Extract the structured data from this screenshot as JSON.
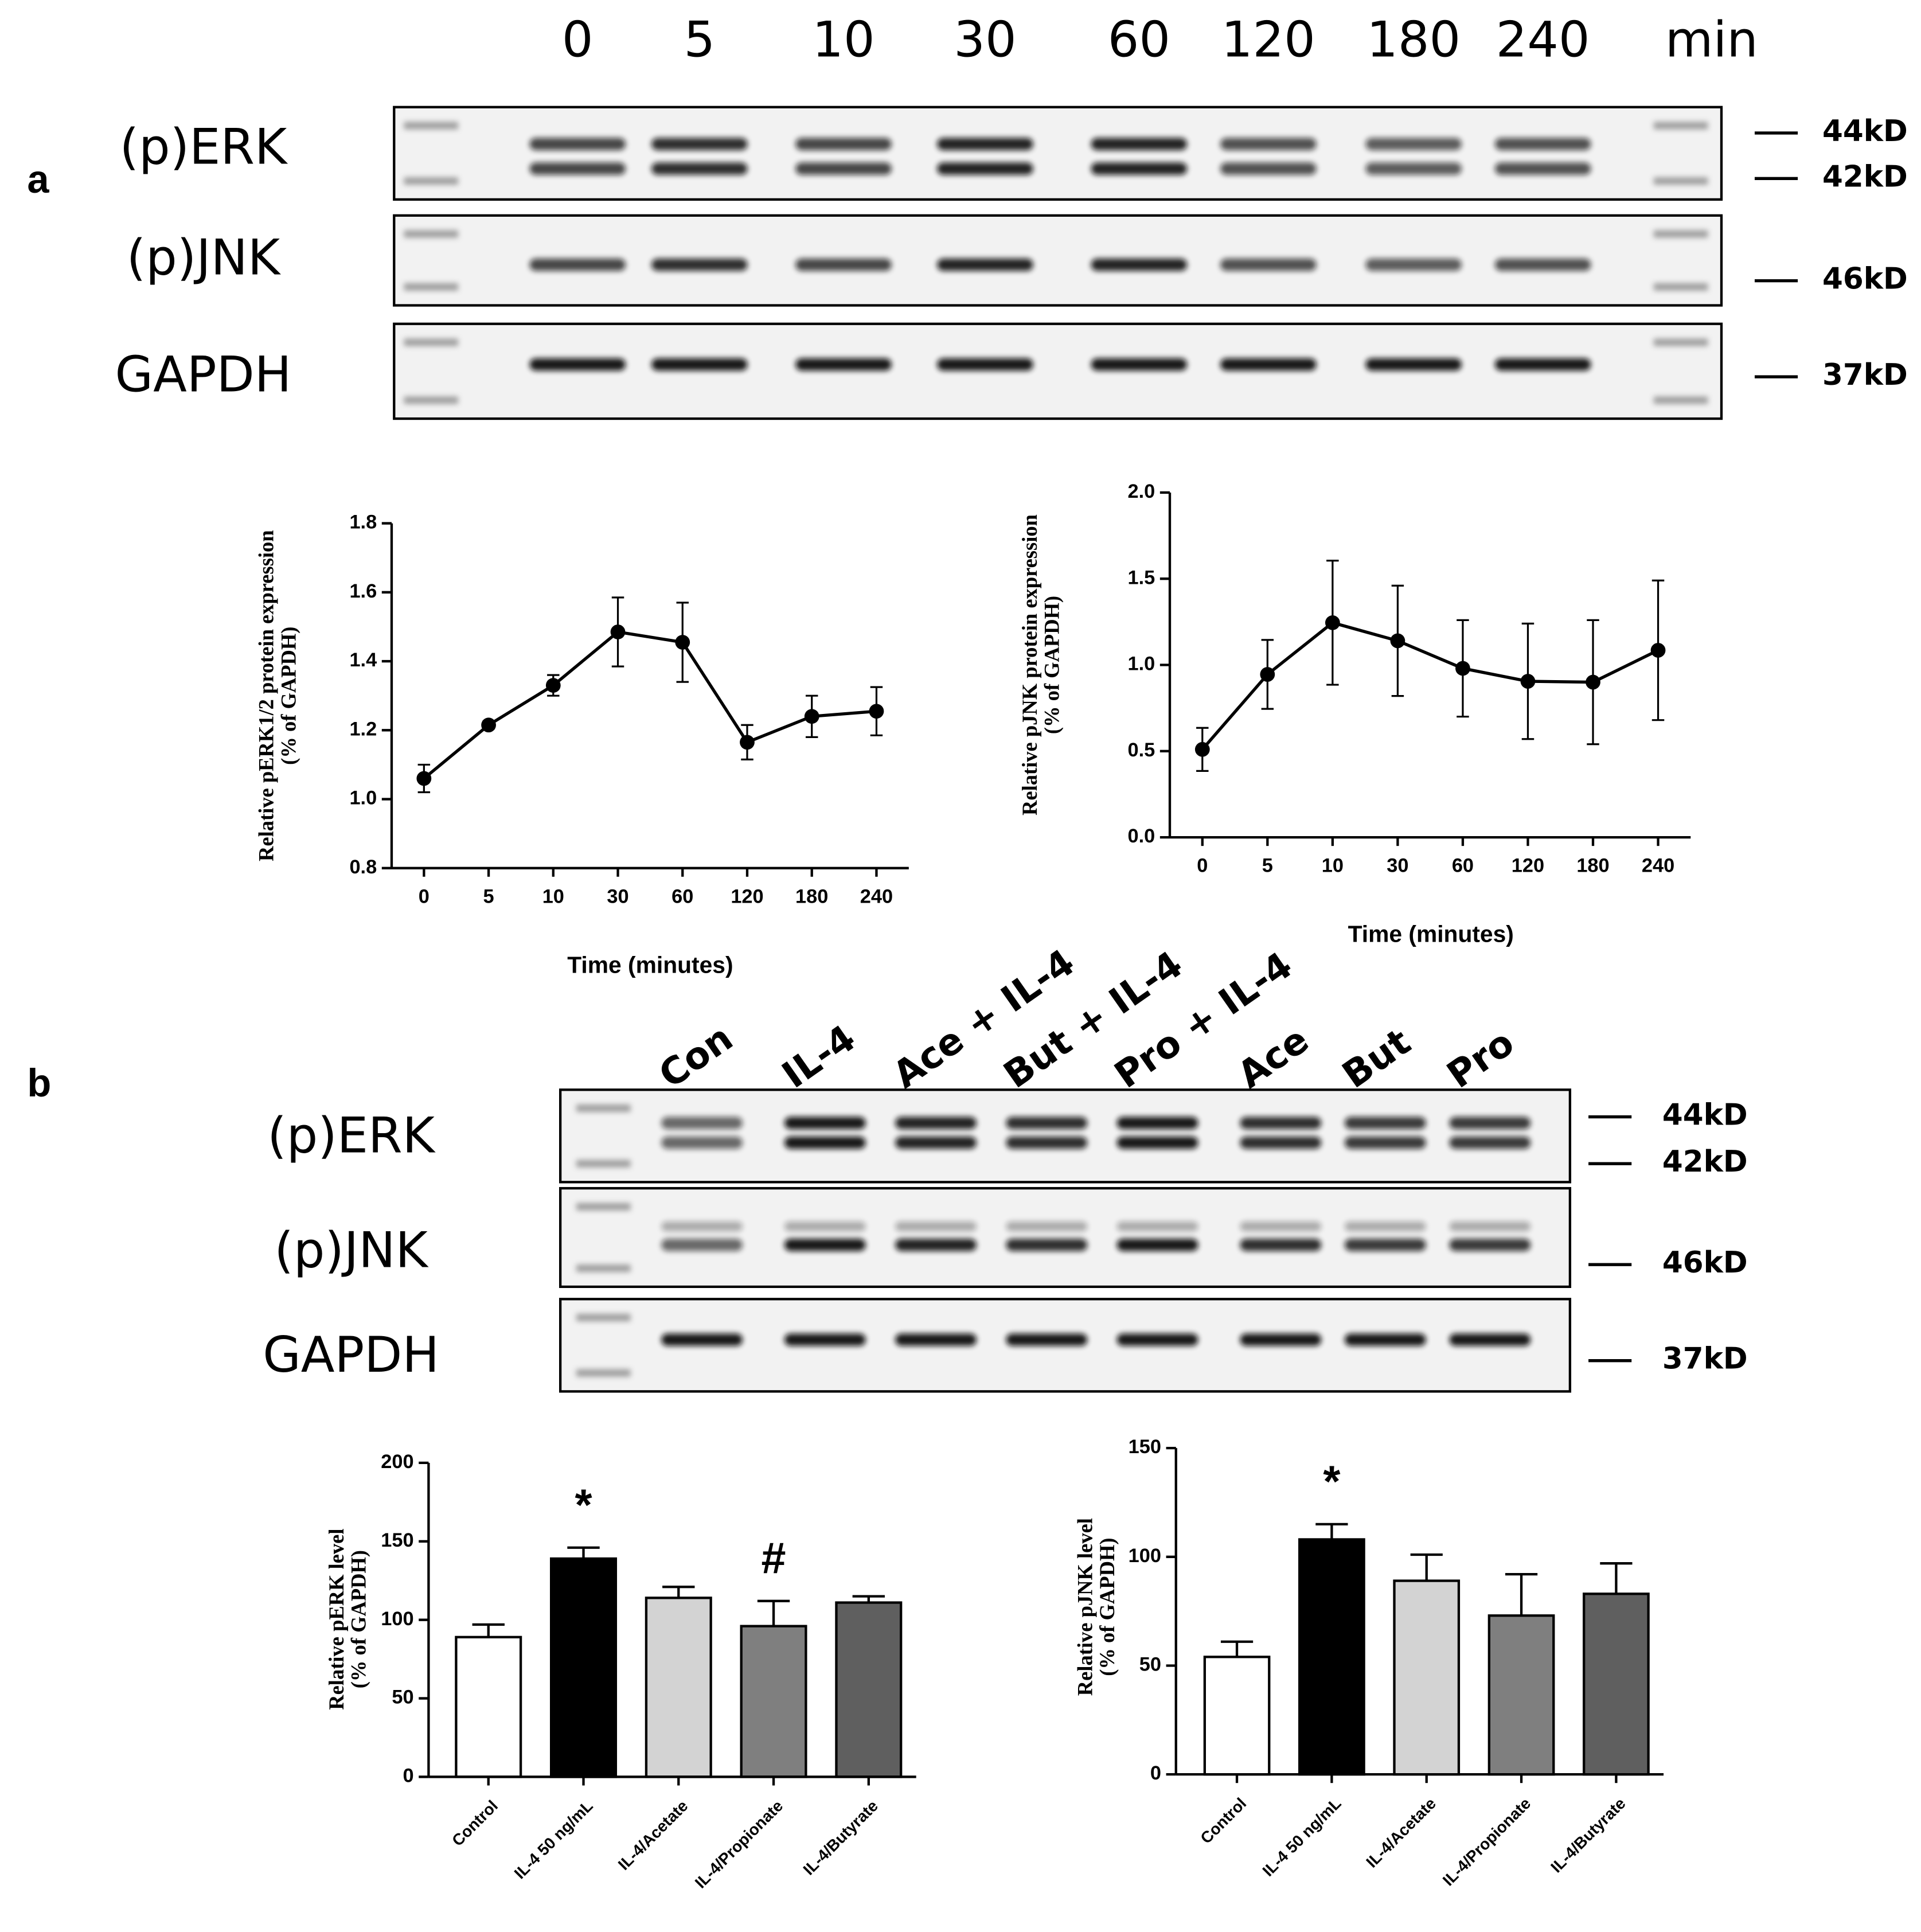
{
  "panel_labels": [
    "a",
    "b"
  ],
  "blot_a": {
    "lanes": [
      "0",
      "5",
      "10",
      "30",
      "60",
      "120",
      "180",
      "240"
    ],
    "unit": "min",
    "rows": [
      {
        "label": "(p)ERK",
        "markers": [
          "44kD",
          "42kD"
        ]
      },
      {
        "label": "(p)JNK",
        "markers": [
          "46kD"
        ]
      },
      {
        "label": "GAPDH",
        "markers": [
          "37kD"
        ]
      }
    ]
  },
  "blot_b": {
    "lanes": [
      "Con",
      "IL-4",
      "Ace + IL-4",
      "But + IL-4",
      "Pro + IL-4",
      "Ace",
      "But",
      "Pro"
    ],
    "rows": [
      {
        "label": "(p)ERK",
        "markers": [
          "44kD",
          "42kD"
        ]
      },
      {
        "label": "(p)JNK",
        "markers": [
          "46kD"
        ]
      },
      {
        "label": "GAPDH",
        "markers": [
          "37kD"
        ]
      }
    ]
  },
  "chart_data": [
    {
      "type": "line",
      "ylabel": [
        "Relative pERK1/2 protein expression",
        "(% of GAPDH)"
      ],
      "xlabel": "Time (minutes)",
      "categories": [
        "0",
        "5",
        "10",
        "30",
        "60",
        "120",
        "180",
        "240"
      ],
      "values": [
        1.06,
        1.215,
        1.33,
        1.485,
        1.455,
        1.165,
        1.24,
        1.255
      ],
      "errors": [
        0.04,
        0.01,
        0.03,
        0.1,
        0.115,
        0.05,
        0.06,
        0.07
      ],
      "color": "#000000",
      "ylim": [
        0.8,
        1.8
      ],
      "yticks": [
        0.8,
        {
          "value": 1,
          "label": "1.0"
        },
        1.2,
        1.4,
        1.6,
        1.8
      ]
    },
    {
      "type": "line",
      "ylabel": [
        "Relative pJNK protein expression",
        "(% of GAPDH)"
      ],
      "xlabel": "Time (minutes)",
      "categories": [
        "0",
        "5",
        "10",
        "30",
        "60",
        "120",
        "180",
        "240"
      ],
      "values": [
        0.51,
        0.945,
        1.245,
        1.14,
        0.98,
        0.905,
        0.9,
        1.085
      ],
      "errors": [
        0.125,
        0.2,
        0.36,
        0.32,
        0.28,
        0.335,
        0.36,
        0.405
      ],
      "color": "#000000",
      "ylim": [
        0,
        2
      ],
      "yticks": [
        {
          "value": 0,
          "label": "0.0"
        },
        0.5,
        {
          "value": 1,
          "label": "1.0"
        },
        1.5,
        {
          "value": 2,
          "label": "2.0"
        }
      ]
    },
    {
      "type": "bar",
      "ylabel": [
        "Relative pERK level",
        "(% of GAPDH)"
      ],
      "categories": [
        "Control",
        "IL-4 50 ng/mL",
        "IL-4/Acetate",
        "IL-4/Propionate",
        "IL-4/Butyrate"
      ],
      "values": [
        89,
        139,
        114,
        96,
        111
      ],
      "errors": [
        8,
        7,
        7,
        16,
        4
      ],
      "colors": [
        "#ffffff",
        "#000000",
        "#d3d3d3",
        "#7f7f7f",
        "#5f5f5f"
      ],
      "ylim": [
        0,
        200
      ],
      "yticks": [
        0,
        50,
        100,
        150,
        200
      ],
      "annotations": [
        {
          "category": "IL-4 50 ng/mL",
          "text": "*"
        },
        {
          "category": "IL-4/Propionate",
          "text": "#"
        }
      ]
    },
    {
      "type": "bar",
      "ylabel": [
        "Relative pJNK level",
        "(% of GAPDH)"
      ],
      "categories": [
        "Control",
        "IL-4 50 ng/mL",
        "IL-4/Acetate",
        "IL-4/Propionate",
        "IL-4/Butyrate"
      ],
      "values": [
        54,
        108,
        89,
        73,
        83
      ],
      "errors": [
        7,
        7,
        12,
        19,
        14
      ],
      "colors": [
        "#ffffff",
        "#000000",
        "#d3d3d3",
        "#7f7f7f",
        "#5f5f5f"
      ],
      "ylim": [
        0,
        150
      ],
      "yticks": [
        0,
        50,
        100,
        150
      ],
      "annotations": [
        {
          "category": "IL-4 50 ng/mL",
          "text": "*"
        }
      ]
    }
  ]
}
